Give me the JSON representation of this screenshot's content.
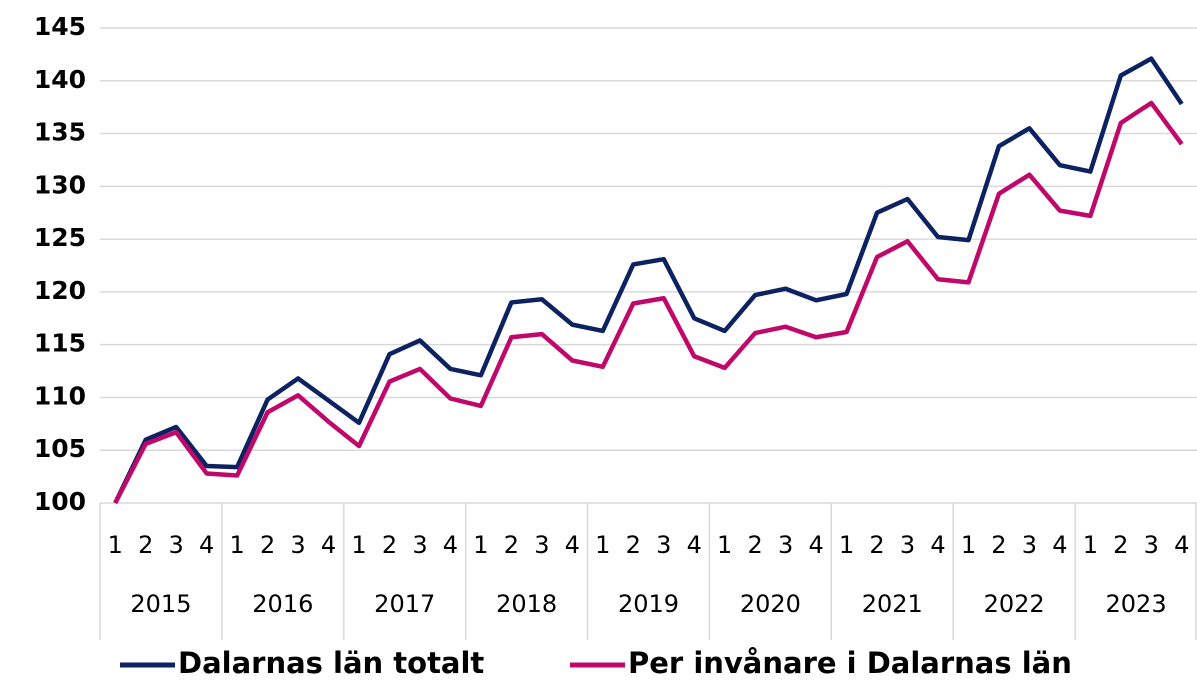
{
  "chart_data": {
    "type": "line",
    "categories": [
      "1",
      "2",
      "3",
      "4",
      "1",
      "2",
      "3",
      "4",
      "1",
      "2",
      "3",
      "4",
      "1",
      "2",
      "3",
      "4",
      "1",
      "2",
      "3",
      "4",
      "1",
      "2",
      "3",
      "4",
      "1",
      "2",
      "3",
      "4",
      "1",
      "2",
      "3",
      "4",
      "1",
      "2",
      "3",
      "4"
    ],
    "category_groups": [
      "2015",
      "2016",
      "2017",
      "2018",
      "2019",
      "2020",
      "2021",
      "2022",
      "2023"
    ],
    "series": [
      {
        "name": "Dalarnas län totalt",
        "color": "#0d2260",
        "values": [
          100,
          106,
          107.2,
          103.5,
          103.4,
          109.8,
          111.8,
          109.7,
          107.6,
          114.1,
          115.4,
          112.7,
          112.1,
          119,
          119.3,
          116.9,
          116.3,
          122.6,
          123.1,
          117.5,
          116.3,
          119.7,
          120.3,
          119.2,
          119.8,
          127.5,
          128.8,
          125.2,
          124.9,
          133.8,
          135.5,
          132,
          131.4,
          140.5,
          142.1,
          137.8
        ]
      },
      {
        "name": "Per invånare i Dalarnas län",
        "color": "#c0086b",
        "values": [
          100,
          105.6,
          106.7,
          102.8,
          102.6,
          108.6,
          110.2,
          107.7,
          105.4,
          111.5,
          112.7,
          109.9,
          109.2,
          115.7,
          116,
          113.5,
          112.9,
          118.9,
          119.4,
          113.9,
          112.8,
          116.1,
          116.7,
          115.7,
          116.2,
          123.3,
          124.8,
          121.2,
          120.9,
          129.3,
          131.1,
          127.7,
          127.2,
          136,
          137.9,
          134
        ]
      }
    ],
    "ylim": [
      100,
      145
    ],
    "yticks": [
      100,
      105,
      110,
      115,
      120,
      125,
      130,
      135,
      140,
      145
    ],
    "grid": true
  }
}
